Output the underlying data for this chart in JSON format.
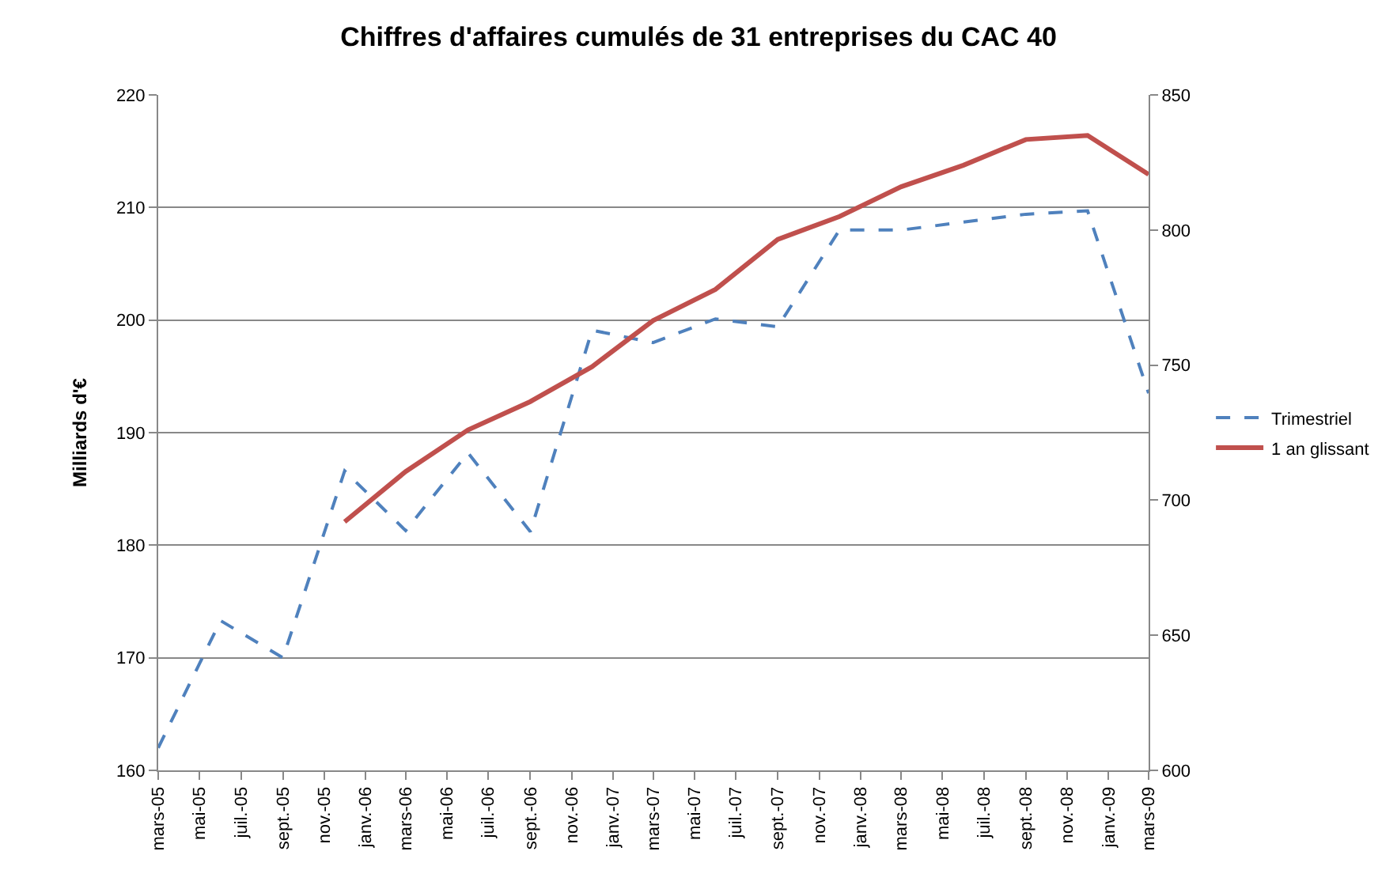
{
  "chart_data": {
    "type": "line",
    "title": "Chiffres d'affaires cumulés de 31 entreprises du CAC 40",
    "ylabel": "Milliards d'€",
    "x": [
      "2005-03",
      "2005-06",
      "2005-09",
      "2005-12",
      "2006-03",
      "2006-06",
      "2006-09",
      "2006-12",
      "2007-03",
      "2007-06",
      "2007-09",
      "2007-12",
      "2008-03",
      "2008-06",
      "2008-09",
      "2008-12",
      "2009-03"
    ],
    "series": [
      {
        "name": "Trimestriel",
        "color": "#4f81bd",
        "line_style": "dashed",
        "values": [
          162,
          173.3,
          170,
          186.6,
          181.3,
          188.2,
          181.2,
          199.1,
          198,
          200.1,
          199.4,
          208,
          208,
          208.7,
          209.4,
          209.7,
          193.5
        ]
      },
      {
        "name": "1 an glissant",
        "color": "#c0504d",
        "line_style": "solid",
        "axis": "y2",
        "values": [
          null,
          null,
          null,
          692,
          710.6,
          726,
          736.5,
          749.4,
          766.5,
          778,
          796.5,
          805,
          816,
          824,
          833.5,
          835,
          820.6
        ]
      }
    ],
    "xlim": [
      "2005-03",
      "2009-03"
    ],
    "xticks": [
      {
        "value": "2005-03",
        "label": "mars-05"
      },
      {
        "value": "2005-05",
        "label": "mai-05"
      },
      {
        "value": "2005-07",
        "label": "juil.-05"
      },
      {
        "value": "2005-09",
        "label": "sept.-05"
      },
      {
        "value": "2005-11",
        "label": "nov.-05"
      },
      {
        "value": "2006-01",
        "label": "janv.-06"
      },
      {
        "value": "2006-03",
        "label": "mars-06"
      },
      {
        "value": "2006-05",
        "label": "mai-06"
      },
      {
        "value": "2006-07",
        "label": "juil.-06"
      },
      {
        "value": "2006-09",
        "label": "sept.-06"
      },
      {
        "value": "2006-11",
        "label": "nov.-06"
      },
      {
        "value": "2007-01",
        "label": "janv.-07"
      },
      {
        "value": "2007-03",
        "label": "mars-07"
      },
      {
        "value": "2007-05",
        "label": "mai-07"
      },
      {
        "value": "2007-07",
        "label": "juil.-07"
      },
      {
        "value": "2007-09",
        "label": "sept.-07"
      },
      {
        "value": "2007-11",
        "label": "nov.-07"
      },
      {
        "value": "2008-01",
        "label": "janv.-08"
      },
      {
        "value": "2008-03",
        "label": "mars-08"
      },
      {
        "value": "2008-05",
        "label": "mai-08"
      },
      {
        "value": "2008-07",
        "label": "juil.-08"
      },
      {
        "value": "2008-09",
        "label": "sept.-08"
      },
      {
        "value": "2008-11",
        "label": "nov.-08"
      },
      {
        "value": "2009-01",
        "label": "janv.-09"
      },
      {
        "value": "2009-03",
        "label": "mars-09"
      }
    ],
    "ylim": [
      160,
      220
    ],
    "yticks": [
      160,
      170,
      180,
      190,
      200,
      210,
      220
    ],
    "y2lim": [
      600,
      850
    ],
    "y2ticks": [
      600,
      650,
      700,
      750,
      800,
      850
    ],
    "grid": "y",
    "legend": "right",
    "marker": "none"
  }
}
